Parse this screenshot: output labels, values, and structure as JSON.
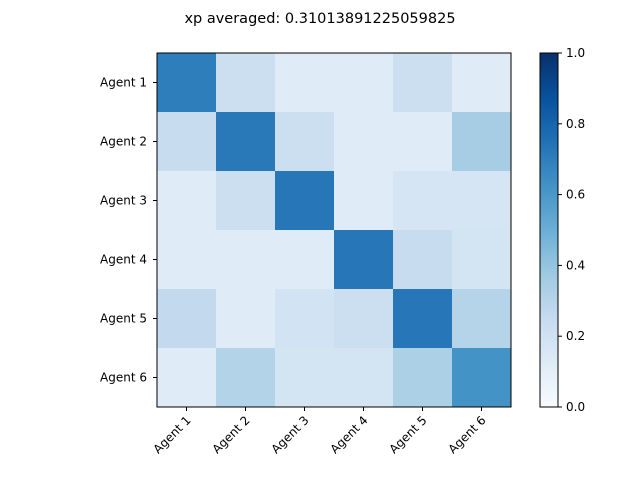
{
  "chart_data": {
    "type": "heatmap",
    "title": "xp averaged: 0.31013891225059825",
    "x_categories": [
      "Agent 1",
      "Agent 2",
      "Agent 3",
      "Agent 4",
      "Agent 5",
      "Agent 6"
    ],
    "y_categories": [
      "Agent 1",
      "Agent 2",
      "Agent 3",
      "Agent 4",
      "Agent 5",
      "Agent 6"
    ],
    "values": [
      [
        0.7,
        0.22,
        0.12,
        0.12,
        0.22,
        0.12
      ],
      [
        0.24,
        0.72,
        0.22,
        0.12,
        0.12,
        0.35
      ],
      [
        0.12,
        0.22,
        0.73,
        0.12,
        0.17,
        0.17
      ],
      [
        0.12,
        0.12,
        0.12,
        0.73,
        0.24,
        0.18
      ],
      [
        0.26,
        0.12,
        0.19,
        0.22,
        0.73,
        0.3
      ],
      [
        0.12,
        0.31,
        0.18,
        0.18,
        0.33,
        0.62
      ]
    ],
    "colormap": "Blues",
    "colorbar": {
      "range": [
        0.0,
        1.0
      ],
      "ticks": [
        "0.0",
        "0.2",
        "0.4",
        "0.6",
        "0.8",
        "1.0"
      ],
      "placement": "right"
    }
  }
}
